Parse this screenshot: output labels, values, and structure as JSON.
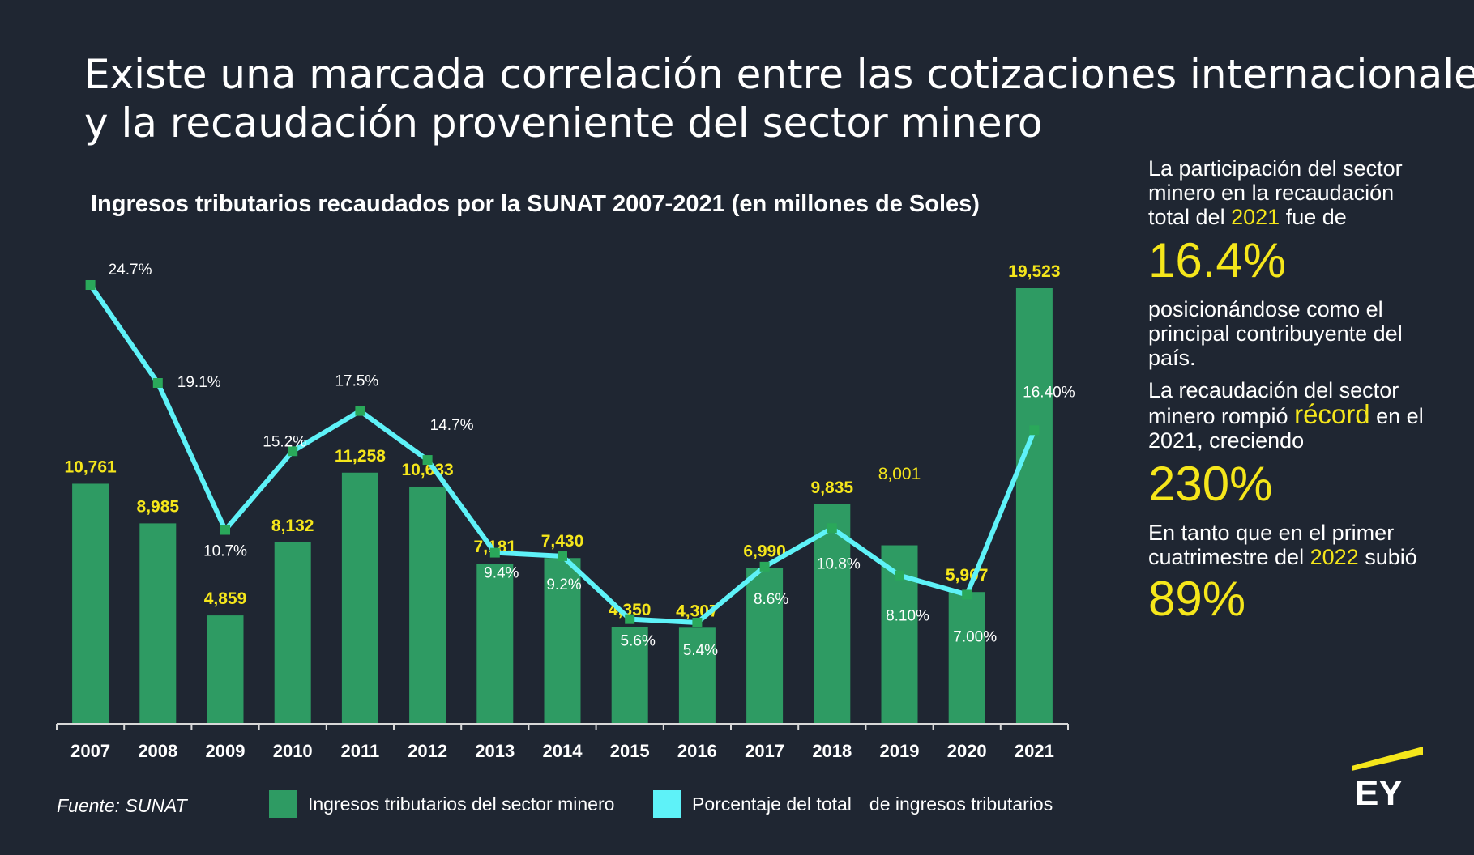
{
  "header": {
    "title_line1": "Existe una marcada correlación entre las cotizaciones internacionales",
    "title_line2": "y la recaudación proveniente del sector minero"
  },
  "chart_data": {
    "type": "bar",
    "title": "Ingresos tributarios recaudados por la SUNAT 2007-2021 (en millones de Soles)",
    "categories": [
      "2007",
      "2008",
      "2009",
      "2010",
      "2011",
      "2012",
      "2013",
      "2014",
      "2015",
      "2016",
      "2017",
      "2018",
      "2019",
      "2020",
      "2021"
    ],
    "series": [
      {
        "name": "Ingresos tributarios del sector minero",
        "type": "bar",
        "color": "#2e9b63",
        "values": [
          10761,
          8985,
          4859,
          8132,
          11258,
          10633,
          7181,
          7430,
          4350,
          4307,
          6990,
          9835,
          8001,
          5907,
          19523
        ],
        "labels": [
          "10,761",
          "8,985",
          "4,859",
          "8,132",
          "11,258",
          "10,633",
          "7,181",
          "7,430",
          "4,350",
          "4,307",
          "6,990",
          "9,835",
          "8,001",
          "5,907",
          "19,523"
        ]
      },
      {
        "name": "Porcentaje del total de ingresos tributarios",
        "type": "line",
        "color": "#5ef2f8",
        "values": [
          24.7,
          19.1,
          10.7,
          15.2,
          17.5,
          14.7,
          9.4,
          9.2,
          5.6,
          5.4,
          8.6,
          10.8,
          8.1,
          7.0,
          16.4
        ],
        "labels": [
          "24.7%",
          "19.1%",
          "10.7%",
          "15.2%",
          "17.5%",
          "14.7%",
          "9.4%",
          "9.2%",
          "5.6%",
          "5.4%",
          "8.6%",
          "10.8%",
          "8.10%",
          "7.00%",
          "16.40%"
        ]
      }
    ],
    "bar_ylim": [
      0,
      21000
    ],
    "line_ylim": [
      0,
      30
    ],
    "legend_position": "bottom",
    "grid": false
  },
  "legend": {
    "bar_label": "Ingresos tributarios del sector minero",
    "line_label_a": "Porcentaje del total",
    "line_label_b": "de ingresos tributarios"
  },
  "source": "Fuente: SUNAT",
  "sidebar": {
    "p1_a": "La participación del sector minero en la recaudación total del",
    "p1_year": "2021",
    "p1_b": "fue de",
    "big1": "16.4%",
    "p2": "posicionándose como el principal contribuyente del país.",
    "p3_a": "La recaudación del sector minero rompió",
    "p3_record": "récord",
    "p3_b": "en el 2021, creciendo",
    "big2": "230%",
    "p4_a": "En tanto que en el primer cuatrimestre del",
    "p4_year": "2022",
    "p4_b": "subió",
    "big3": "89%"
  },
  "colors": {
    "background": "#1f2632",
    "accent": "#f5e61b",
    "bar": "#2e9b63",
    "line": "#5ef2f8",
    "marker": "#2aa85a"
  },
  "logo_text": "EY"
}
